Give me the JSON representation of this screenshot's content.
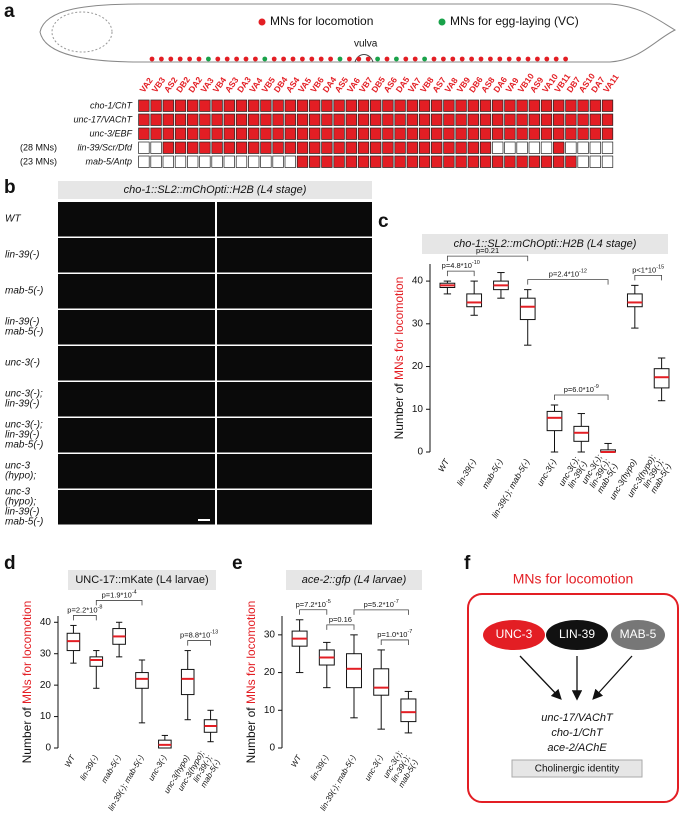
{
  "panel_labels": [
    "a",
    "b",
    "c",
    "d",
    "e",
    "f"
  ],
  "panel_a": {
    "legend_locomotion": "MNs for locomotion",
    "legend_egg": "MNs for egg-laying (VC)",
    "vulva": "vulva",
    "colors": {
      "locomotion": "#e31e24",
      "egg": "#19a24a"
    },
    "neurons": [
      "VA2",
      "VB3",
      "AS2",
      "DB2",
      "DA2",
      "VA3",
      "VB4",
      "AS3",
      "DA3",
      "VA4",
      "VB5",
      "DB4",
      "AS4",
      "VA5",
      "VB6",
      "DA4",
      "AS5",
      "VA6",
      "VB7",
      "DB5",
      "AS6",
      "DA5",
      "VA7",
      "VB8",
      "AS7",
      "VA8",
      "VB9",
      "DB6",
      "AS8",
      "DA6",
      "VA9",
      "VB10",
      "AS9",
      "VA10",
      "VB11",
      "DB7",
      "AS10",
      "DA7",
      "VA11"
    ],
    "rows": [
      {
        "gene": "cho-1/ChT",
        "expressed": [
          true,
          true,
          true,
          true,
          true,
          true,
          true,
          true,
          true,
          true,
          true,
          true,
          true,
          true,
          true,
          true,
          true,
          true,
          true,
          true,
          true,
          true,
          true,
          true,
          true,
          true,
          true,
          true,
          true,
          true,
          true,
          true,
          true,
          true,
          true,
          true,
          true,
          true,
          true
        ]
      },
      {
        "gene": "unc-17/VAChT",
        "expressed": [
          true,
          true,
          true,
          true,
          true,
          true,
          true,
          true,
          true,
          true,
          true,
          true,
          true,
          true,
          true,
          true,
          true,
          true,
          true,
          true,
          true,
          true,
          true,
          true,
          true,
          true,
          true,
          true,
          true,
          true,
          true,
          true,
          true,
          true,
          true,
          true,
          true,
          true,
          true
        ]
      },
      {
        "gene": "unc-3/EBF",
        "expressed": [
          true,
          true,
          true,
          true,
          true,
          true,
          true,
          true,
          true,
          true,
          true,
          true,
          true,
          true,
          true,
          true,
          true,
          true,
          true,
          true,
          true,
          true,
          true,
          true,
          true,
          true,
          true,
          true,
          true,
          true,
          true,
          true,
          true,
          true,
          true,
          true,
          true,
          true,
          true
        ]
      },
      {
        "count": "(28 MNs)",
        "gene": "lin-39/Scr/Dfd",
        "expressed": [
          false,
          false,
          true,
          true,
          true,
          true,
          true,
          true,
          true,
          true,
          true,
          true,
          true,
          true,
          true,
          true,
          true,
          true,
          true,
          true,
          true,
          true,
          true,
          true,
          true,
          true,
          true,
          true,
          true,
          false,
          false,
          false,
          false,
          false,
          true,
          false,
          false,
          false,
          false
        ]
      },
      {
        "count": "(23 MNs)",
        "gene": "mab-5/Antp",
        "expressed": [
          false,
          false,
          false,
          false,
          false,
          false,
          false,
          false,
          false,
          false,
          false,
          false,
          false,
          true,
          true,
          true,
          true,
          true,
          true,
          true,
          true,
          true,
          true,
          true,
          true,
          true,
          true,
          true,
          true,
          true,
          true,
          true,
          true,
          true,
          true,
          true,
          false,
          false,
          false
        ]
      }
    ]
  },
  "panel_b": {
    "title": "cho-1::SL2::mChOpti::H2B (L4 stage)",
    "rows": [
      [
        "WT"
      ],
      [
        "lin-39(-)"
      ],
      [
        "mab-5(-)"
      ],
      [
        "lin-39(-)",
        "mab-5(-)"
      ],
      [
        "unc-3(-)"
      ],
      [
        "unc-3(-);",
        "lin-39(-)"
      ],
      [
        "unc-3(-);",
        "lin-39(-)",
        "mab-5(-)"
      ],
      [
        "unc-3",
        "(hypo);"
      ],
      [
        "unc-3",
        "(hypo);",
        "lin-39(-)",
        "mab-5(-)"
      ]
    ]
  },
  "chart_data": [
    {
      "type": "box",
      "title": "cho-1::SL2::mChOpti::H2B (L4 stage)",
      "ylabel": {
        "prefix": "Number of ",
        "highlight": "MNs for locomotion"
      },
      "categories": [
        [
          "WT"
        ],
        [
          "lin-39(-)"
        ],
        [
          "mab-5(-)"
        ],
        [
          "lin-39(-); mab-5(-)"
        ],
        [
          "unc-3(-)"
        ],
        [
          "unc-3(-);",
          "lin-39(-)"
        ],
        [
          "unc-3(-);",
          "lin-39(-);",
          "mab-5(-)"
        ],
        [
          "unc-3(hypo)"
        ],
        [
          "unc-3(hypo);",
          "lin-39(-);",
          "mab-5(-)"
        ]
      ],
      "boxes": [
        {
          "median": 39,
          "q1": 38.5,
          "q3": 39.5,
          "min": 37,
          "max": 40
        },
        {
          "median": 35,
          "q1": 34,
          "q3": 37,
          "min": 32,
          "max": 40
        },
        {
          "median": 39,
          "q1": 38,
          "q3": 40,
          "min": 36,
          "max": 42
        },
        {
          "median": 34,
          "q1": 31,
          "q3": 36,
          "min": 25,
          "max": 38
        },
        {
          "median": 8,
          "q1": 5,
          "q3": 9.5,
          "min": 0,
          "max": 11
        },
        {
          "median": 4.5,
          "q1": 2.5,
          "q3": 6,
          "min": 0,
          "max": 9
        },
        {
          "median": 0,
          "q1": 0,
          "q3": 0.5,
          "min": 0,
          "max": 2
        },
        {
          "median": 35,
          "q1": 34,
          "q3": 37,
          "min": 29,
          "max": 39
        },
        {
          "median": 17.5,
          "q1": 15,
          "q3": 19.5,
          "min": 12,
          "max": 22
        }
      ],
      "median_color": "#e31e24",
      "ylim": [
        0,
        44
      ],
      "yticks": [
        0,
        10,
        20,
        30,
        40
      ],
      "annotations": [
        {
          "between": [
            0,
            1
          ],
          "base": "p=4.8*10",
          "exponent": "-10"
        },
        {
          "between": [
            4,
            6
          ],
          "base": "p=6.0*10",
          "exponent": "-9"
        },
        {
          "between": [
            7,
            8
          ],
          "base": "p<1*10",
          "exponent": "-15"
        },
        {
          "between": [
            0,
            3
          ],
          "base": "p=0.21",
          "exponent": ""
        },
        {
          "between": [
            3,
            6
          ],
          "base": "p=2.4*10",
          "exponent": "-12"
        }
      ]
    },
    {
      "type": "box",
      "title": "UNC-17::mKate (L4 larvae)",
      "ylabel": {
        "prefix": "Number of ",
        "highlight": "MNs for locomotion"
      },
      "categories": [
        [
          "WT"
        ],
        [
          "lin-39(-)"
        ],
        [
          "mab-5(-)"
        ],
        [
          "lin-39(-); mab-5(-)"
        ],
        [
          "unc-3(-)"
        ],
        [
          "unc-3(hypo)"
        ],
        [
          "unc-3(hypo);",
          "lin-39(-);",
          "mab-5(-)"
        ]
      ],
      "boxes": [
        {
          "median": 34,
          "q1": 31,
          "q3": 36.5,
          "min": 27,
          "max": 39
        },
        {
          "median": 28,
          "q1": 26,
          "q3": 29,
          "min": 19,
          "max": 31
        },
        {
          "median": 35.5,
          "q1": 33,
          "q3": 38,
          "min": 29,
          "max": 40
        },
        {
          "median": 22,
          "q1": 19,
          "q3": 24,
          "min": 8,
          "max": 28
        },
        {
          "median": 1,
          "q1": 0,
          "q3": 2.5,
          "min": 0,
          "max": 4
        },
        {
          "median": 22,
          "q1": 17,
          "q3": 25,
          "min": 9,
          "max": 31
        },
        {
          "median": 7,
          "q1": 5,
          "q3": 9,
          "min": 2,
          "max": 12
        }
      ],
      "median_color": "#e31e24",
      "ylim": [
        0,
        42
      ],
      "yticks": [
        0,
        10,
        20,
        30,
        40
      ],
      "annotations": [
        {
          "between": [
            0,
            1
          ],
          "base": "p=2.2*10",
          "exponent": "-8"
        },
        {
          "between": [
            1,
            3
          ],
          "base": "p=1.9*10",
          "exponent": "-4"
        },
        {
          "between": [
            5,
            6
          ],
          "base": "p=8.8*10",
          "exponent": "-13"
        }
      ]
    },
    {
      "type": "box",
      "title": "ace-2::gfp (L4 larvae)",
      "ylabel": {
        "prefix": "Number of ",
        "highlight": "MNs for locomotion"
      },
      "categories": [
        [
          "WT"
        ],
        [
          "lin-39(-)"
        ],
        [
          "lin-39(-); mab-5(-)"
        ],
        [
          "unc-3(-)"
        ],
        [
          "unc-3(-);",
          "lin-39(-);",
          "mab-5(-)"
        ]
      ],
      "boxes": [
        {
          "median": 29,
          "q1": 27,
          "q3": 31,
          "min": 20,
          "max": 34
        },
        {
          "median": 24,
          "q1": 22,
          "q3": 26,
          "min": 16,
          "max": 28
        },
        {
          "median": 21,
          "q1": 16,
          "q3": 25,
          "min": 8,
          "max": 30
        },
        {
          "median": 16,
          "q1": 14,
          "q3": 21,
          "min": 5,
          "max": 26
        },
        {
          "median": 9.5,
          "q1": 7,
          "q3": 13,
          "min": 4,
          "max": 15
        }
      ],
      "median_color": "#e31e24",
      "ylim": [
        0,
        35
      ],
      "yticks": [
        0,
        10,
        20,
        30
      ],
      "annotations": [
        {
          "between": [
            0,
            1
          ],
          "base": "p=7.2*10",
          "exponent": "-5"
        },
        {
          "between": [
            1,
            2
          ],
          "base": "p=0.16",
          "exponent": ""
        },
        {
          "between": [
            3,
            4
          ],
          "base": "p=1.0*10",
          "exponent": "-7"
        },
        {
          "between": [
            2,
            4
          ],
          "base": "p=5.2*10",
          "exponent": "-7"
        }
      ]
    }
  ],
  "panel_f": {
    "title": "MNs for locomotion",
    "factors": [
      "UNC-3",
      "LIN-39",
      "MAB-5"
    ],
    "targets": [
      "unc-17/VAChT",
      "cho-1/ChT",
      "ace-2/AChE"
    ],
    "identity": "Cholinergic identity"
  }
}
